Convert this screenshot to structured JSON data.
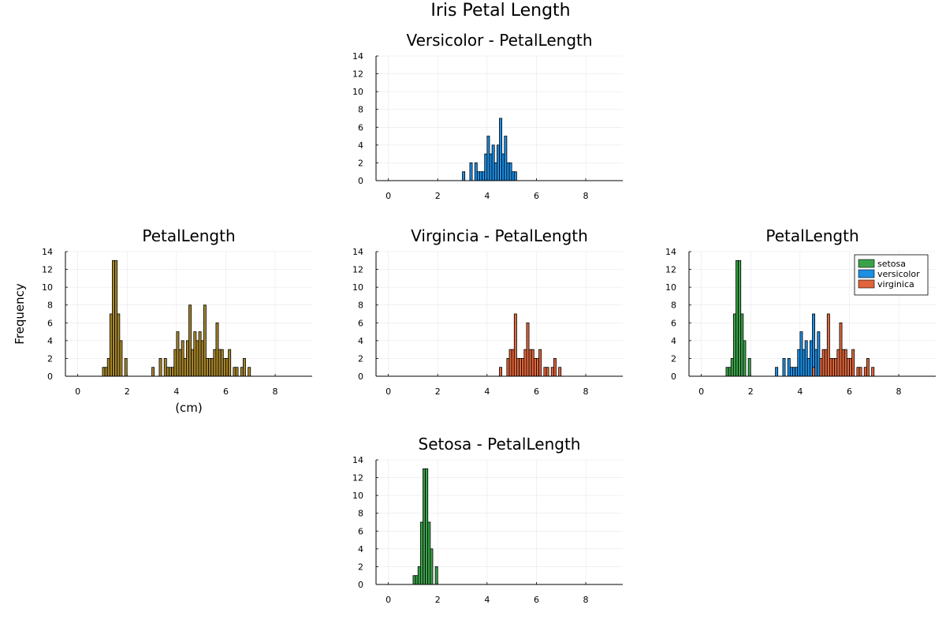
{
  "title": "Iris Petal Length",
  "colors": {
    "setosa": "#3ba24a",
    "versicolor": "#1c8ee4",
    "virginica": "#e0653a",
    "all": "#a6852b",
    "grid": "#e8e8e8",
    "axis": "#000000"
  },
  "chart_data": [
    {
      "type": "bar",
      "title": "Versicolor - PetalLength",
      "xlabel": "",
      "ylabel": "",
      "xlim": [
        -0.5,
        9.5
      ],
      "ylim": [
        0,
        14
      ],
      "xticks": [
        0,
        2,
        4,
        6,
        8
      ],
      "yticks": [
        0,
        2,
        4,
        6,
        8,
        10,
        12,
        14
      ],
      "grid": true,
      "bin_width": 0.1,
      "series": [
        {
          "color_key": "versicolor",
          "bins": [
            [
              3.0,
              1
            ],
            [
              3.3,
              2
            ],
            [
              3.5,
              2
            ],
            [
              3.6,
              1
            ],
            [
              3.7,
              1
            ],
            [
              3.8,
              1
            ],
            [
              3.9,
              3
            ],
            [
              4.0,
              5
            ],
            [
              4.1,
              3
            ],
            [
              4.2,
              4
            ],
            [
              4.3,
              2
            ],
            [
              4.4,
              4
            ],
            [
              4.5,
              7
            ],
            [
              4.6,
              3
            ],
            [
              4.7,
              5
            ],
            [
              4.8,
              2
            ],
            [
              4.9,
              2
            ],
            [
              5.0,
              1
            ],
            [
              5.1,
              1
            ]
          ]
        }
      ]
    },
    {
      "type": "bar",
      "title": "PetalLength",
      "xlabel": "(cm)",
      "ylabel": "Frequency",
      "xlim": [
        -0.5,
        9.5
      ],
      "ylim": [
        0,
        14
      ],
      "xticks": [
        0,
        2,
        4,
        6,
        8
      ],
      "yticks": [
        0,
        2,
        4,
        6,
        8,
        10,
        12,
        14
      ],
      "grid": true,
      "bin_width": 0.1,
      "series": [
        {
          "color_key": "all",
          "bins": [
            [
              1.0,
              1
            ],
            [
              1.1,
              1
            ],
            [
              1.2,
              2
            ],
            [
              1.3,
              7
            ],
            [
              1.4,
              13
            ],
            [
              1.5,
              13
            ],
            [
              1.6,
              7
            ],
            [
              1.7,
              4
            ],
            [
              1.9,
              2
            ],
            [
              3.0,
              1
            ],
            [
              3.3,
              2
            ],
            [
              3.5,
              2
            ],
            [
              3.6,
              1
            ],
            [
              3.7,
              1
            ],
            [
              3.8,
              1
            ],
            [
              3.9,
              3
            ],
            [
              4.0,
              5
            ],
            [
              4.1,
              3
            ],
            [
              4.2,
              4
            ],
            [
              4.3,
              2
            ],
            [
              4.4,
              4
            ],
            [
              4.5,
              8
            ],
            [
              4.6,
              3
            ],
            [
              4.7,
              5
            ],
            [
              4.8,
              4
            ],
            [
              4.9,
              5
            ],
            [
              5.0,
              4
            ],
            [
              5.1,
              8
            ],
            [
              5.2,
              2
            ],
            [
              5.3,
              2
            ],
            [
              5.4,
              2
            ],
            [
              5.5,
              3
            ],
            [
              5.6,
              6
            ],
            [
              5.7,
              3
            ],
            [
              5.8,
              3
            ],
            [
              5.9,
              2
            ],
            [
              6.0,
              2
            ],
            [
              6.1,
              3
            ],
            [
              6.3,
              1
            ],
            [
              6.4,
              1
            ],
            [
              6.6,
              1
            ],
            [
              6.7,
              2
            ],
            [
              6.9,
              1
            ]
          ]
        }
      ]
    },
    {
      "type": "bar",
      "title": "Virgincia - PetalLength",
      "xlabel": "",
      "ylabel": "",
      "xlim": [
        -0.5,
        9.5
      ],
      "ylim": [
        0,
        14
      ],
      "xticks": [
        0,
        2,
        4,
        6,
        8
      ],
      "yticks": [
        0,
        2,
        4,
        6,
        8,
        10,
        12,
        14
      ],
      "grid": true,
      "bin_width": 0.1,
      "series": [
        {
          "color_key": "virginica",
          "bins": [
            [
              4.5,
              1
            ],
            [
              4.8,
              2
            ],
            [
              4.9,
              3
            ],
            [
              5.0,
              3
            ],
            [
              5.1,
              7
            ],
            [
              5.2,
              2
            ],
            [
              5.3,
              2
            ],
            [
              5.4,
              2
            ],
            [
              5.5,
              3
            ],
            [
              5.6,
              6
            ],
            [
              5.7,
              3
            ],
            [
              5.8,
              3
            ],
            [
              5.9,
              2
            ],
            [
              6.0,
              2
            ],
            [
              6.1,
              3
            ],
            [
              6.3,
              1
            ],
            [
              6.4,
              1
            ],
            [
              6.6,
              1
            ],
            [
              6.7,
              2
            ],
            [
              6.9,
              1
            ]
          ]
        }
      ]
    },
    {
      "type": "bar",
      "title": "PetalLength",
      "xlabel": "",
      "ylabel": "",
      "xlim": [
        -0.5,
        9.5
      ],
      "ylim": [
        0,
        14
      ],
      "xticks": [
        0,
        2,
        4,
        6,
        8
      ],
      "yticks": [
        0,
        2,
        4,
        6,
        8,
        10,
        12,
        14
      ],
      "grid": true,
      "bin_width": 0.1,
      "legend": "top-right",
      "series": [
        {
          "name": "setosa",
          "color_key": "setosa",
          "bins": [
            [
              1.0,
              1
            ],
            [
              1.1,
              1
            ],
            [
              1.2,
              2
            ],
            [
              1.3,
              7
            ],
            [
              1.4,
              13
            ],
            [
              1.5,
              13
            ],
            [
              1.6,
              7
            ],
            [
              1.7,
              4
            ],
            [
              1.9,
              2
            ]
          ]
        },
        {
          "name": "versicolor",
          "color_key": "versicolor",
          "bins": [
            [
              3.0,
              1
            ],
            [
              3.3,
              2
            ],
            [
              3.5,
              2
            ],
            [
              3.6,
              1
            ],
            [
              3.7,
              1
            ],
            [
              3.8,
              1
            ],
            [
              3.9,
              3
            ],
            [
              4.0,
              5
            ],
            [
              4.1,
              3
            ],
            [
              4.2,
              4
            ],
            [
              4.3,
              2
            ],
            [
              4.4,
              4
            ],
            [
              4.5,
              7
            ],
            [
              4.6,
              3
            ],
            [
              4.7,
              5
            ],
            [
              4.8,
              2
            ],
            [
              4.9,
              2
            ],
            [
              5.0,
              1
            ],
            [
              5.1,
              1
            ]
          ]
        },
        {
          "name": "virginica",
          "color_key": "virginica",
          "bins": [
            [
              4.5,
              1
            ],
            [
              4.8,
              2
            ],
            [
              4.9,
              3
            ],
            [
              5.0,
              3
            ],
            [
              5.1,
              7
            ],
            [
              5.2,
              2
            ],
            [
              5.3,
              2
            ],
            [
              5.4,
              2
            ],
            [
              5.5,
              3
            ],
            [
              5.6,
              6
            ],
            [
              5.7,
              3
            ],
            [
              5.8,
              3
            ],
            [
              5.9,
              2
            ],
            [
              6.0,
              2
            ],
            [
              6.1,
              3
            ],
            [
              6.3,
              1
            ],
            [
              6.4,
              1
            ],
            [
              6.6,
              1
            ],
            [
              6.7,
              2
            ],
            [
              6.9,
              1
            ]
          ]
        }
      ]
    },
    {
      "type": "bar",
      "title": "Setosa - PetalLength",
      "xlabel": "",
      "ylabel": "",
      "xlim": [
        -0.5,
        9.5
      ],
      "ylim": [
        0,
        14
      ],
      "xticks": [
        0,
        2,
        4,
        6,
        8
      ],
      "yticks": [
        0,
        2,
        4,
        6,
        8,
        10,
        12,
        14
      ],
      "grid": true,
      "bin_width": 0.1,
      "series": [
        {
          "color_key": "setosa",
          "bins": [
            [
              1.0,
              1
            ],
            [
              1.1,
              1
            ],
            [
              1.2,
              2
            ],
            [
              1.3,
              7
            ],
            [
              1.4,
              13
            ],
            [
              1.5,
              13
            ],
            [
              1.6,
              7
            ],
            [
              1.7,
              4
            ],
            [
              1.9,
              2
            ]
          ]
        }
      ]
    }
  ]
}
